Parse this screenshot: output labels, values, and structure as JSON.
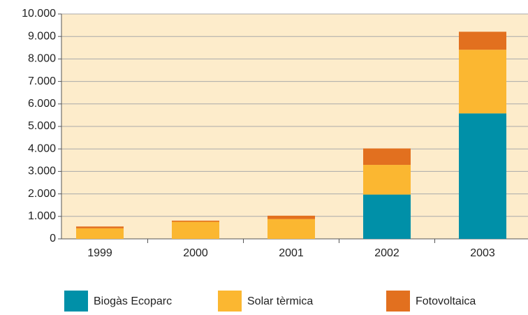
{
  "chart_data": {
    "type": "stacked_bar",
    "categories": [
      "1999",
      "2000",
      "2001",
      "2002",
      "2003"
    ],
    "series": [
      {
        "name": "Biogàs Ecoparc",
        "color": "#0090a8",
        "values": [
          0,
          0,
          0,
          1970,
          5580
        ]
      },
      {
        "name": "Solar tèrmica",
        "color": "#fbb731",
        "values": [
          470,
          760,
          880,
          1320,
          2830
        ]
      },
      {
        "name": "Fotovoltaica",
        "color": "#e2701f",
        "values": [
          80,
          50,
          150,
          730,
          800
        ]
      }
    ],
    "ylim": [
      0,
      10000
    ],
    "yticks": [
      0,
      {
        "value": 1000,
        "label": "1.000"
      },
      {
        "value": 2000,
        "label": "2.000"
      },
      {
        "value": 3000,
        "label": "3.000"
      },
      {
        "value": 4000,
        "label": "4.000"
      },
      {
        "value": 5000,
        "label": "5.000"
      },
      {
        "value": 6000,
        "label": "6.000"
      },
      {
        "value": 7000,
        "label": "7.000"
      },
      {
        "value": 8000,
        "label": "8.000"
      },
      {
        "value": 9000,
        "label": "9.000"
      },
      {
        "value": 10000,
        "label": "10.000"
      }
    ],
    "grid": true,
    "legend": "bottom"
  }
}
